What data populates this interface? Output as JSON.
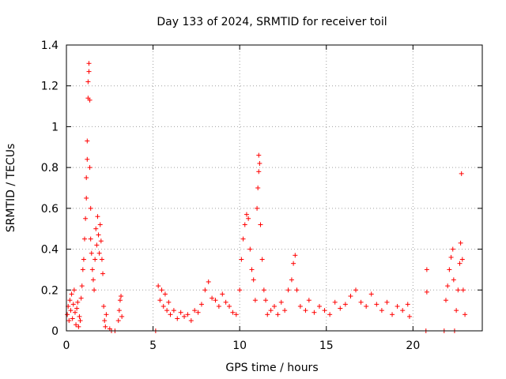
{
  "chart_data": {
    "type": "scatter",
    "title": "Day 133 of 2024, SRMTID for receiver toil",
    "xlabel": "GPS time / hours",
    "ylabel": "SRMTID / TECUs",
    "xlim": [
      0,
      24
    ],
    "ylim": [
      0,
      1.4
    ],
    "xticks": [
      0,
      5,
      10,
      15,
      20
    ],
    "xtick_labels": [
      "0",
      "5",
      "10",
      "15",
      "20"
    ],
    "yticks": [
      0,
      0.2,
      0.4,
      0.6,
      0.8,
      1.0,
      1.2,
      1.4
    ],
    "ytick_labels": [
      "0",
      "0.2",
      "0.4",
      "0.6",
      "0.8",
      "1",
      "1.2",
      "1.4"
    ],
    "grid": true,
    "marker": "plus",
    "color": "#ff0000",
    "series": [
      {
        "name": "SRMTID",
        "points": [
          [
            0.05,
            0.08
          ],
          [
            0.1,
            0.12
          ],
          [
            0.15,
            0.05
          ],
          [
            0.2,
            0.15
          ],
          [
            0.25,
            0.1
          ],
          [
            0.3,
            0.18
          ],
          [
            0.35,
            0.06
          ],
          [
            0.4,
            0.13
          ],
          [
            0.45,
            0.2
          ],
          [
            0.5,
            0.09
          ],
          [
            0.55,
            0.03
          ],
          [
            0.6,
            0.11
          ],
          [
            0.65,
            0.14
          ],
          [
            0.7,
            0.02
          ],
          [
            0.75,
            0.07
          ],
          [
            0.8,
            0.05
          ],
          [
            0.85,
            0.16
          ],
          [
            0.9,
            0.22
          ],
          [
            0.95,
            0.3
          ],
          [
            1.0,
            0.35
          ],
          [
            1.05,
            0.45
          ],
          [
            1.1,
            0.55
          ],
          [
            1.15,
            0.65
          ],
          [
            1.15,
            0.75
          ],
          [
            1.2,
            0.84
          ],
          [
            1.2,
            0.93
          ],
          [
            1.25,
            1.14
          ],
          [
            1.25,
            1.22
          ],
          [
            1.3,
            1.27
          ],
          [
            1.3,
            1.31
          ],
          [
            1.35,
            1.13
          ],
          [
            1.35,
            0.8
          ],
          [
            1.4,
            0.6
          ],
          [
            1.4,
            0.45
          ],
          [
            1.45,
            0.38
          ],
          [
            1.5,
            0.3
          ],
          [
            1.55,
            0.25
          ],
          [
            1.6,
            0.2
          ],
          [
            1.65,
            0.35
          ],
          [
            1.7,
            0.5
          ],
          [
            1.75,
            0.42
          ],
          [
            1.8,
            0.56
          ],
          [
            1.85,
            0.47
          ],
          [
            1.9,
            0.38
          ],
          [
            1.95,
            0.52
          ],
          [
            2.0,
            0.44
          ],
          [
            2.05,
            0.35
          ],
          [
            2.1,
            0.28
          ],
          [
            2.15,
            0.12
          ],
          [
            2.2,
            0.05
          ],
          [
            2.25,
            0.02
          ],
          [
            2.3,
            0.08
          ],
          [
            2.5,
            0.01
          ],
          [
            2.6,
            0.0
          ],
          [
            2.8,
            0.0
          ],
          [
            3.0,
            0.05
          ],
          [
            3.05,
            0.1
          ],
          [
            3.1,
            0.15
          ],
          [
            3.15,
            0.17
          ],
          [
            3.2,
            0.07
          ],
          [
            5.15,
            0.0
          ],
          [
            5.3,
            0.22
          ],
          [
            5.4,
            0.15
          ],
          [
            5.5,
            0.2
          ],
          [
            5.6,
            0.12
          ],
          [
            5.7,
            0.18
          ],
          [
            5.8,
            0.1
          ],
          [
            5.9,
            0.14
          ],
          [
            6.0,
            0.08
          ],
          [
            6.2,
            0.1
          ],
          [
            6.4,
            0.06
          ],
          [
            6.6,
            0.09
          ],
          [
            6.8,
            0.07
          ],
          [
            7.0,
            0.08
          ],
          [
            7.2,
            0.05
          ],
          [
            7.4,
            0.1
          ],
          [
            7.6,
            0.09
          ],
          [
            7.8,
            0.13
          ],
          [
            8.0,
            0.2
          ],
          [
            8.2,
            0.24
          ],
          [
            8.4,
            0.16
          ],
          [
            8.6,
            0.15
          ],
          [
            8.8,
            0.12
          ],
          [
            9.0,
            0.18
          ],
          [
            9.2,
            0.14
          ],
          [
            9.4,
            0.12
          ],
          [
            9.6,
            0.09
          ],
          [
            9.8,
            0.08
          ],
          [
            10.0,
            0.2
          ],
          [
            10.1,
            0.35
          ],
          [
            10.2,
            0.45
          ],
          [
            10.3,
            0.52
          ],
          [
            10.4,
            0.57
          ],
          [
            10.5,
            0.55
          ],
          [
            10.6,
            0.4
          ],
          [
            10.7,
            0.3
          ],
          [
            10.8,
            0.25
          ],
          [
            10.9,
            0.15
          ],
          [
            11.0,
            0.6
          ],
          [
            11.05,
            0.7
          ],
          [
            11.1,
            0.78
          ],
          [
            11.1,
            0.86
          ],
          [
            11.15,
            0.82
          ],
          [
            11.2,
            0.52
          ],
          [
            11.3,
            0.35
          ],
          [
            11.4,
            0.2
          ],
          [
            11.5,
            0.15
          ],
          [
            11.6,
            0.08
          ],
          [
            11.8,
            0.1
          ],
          [
            12.0,
            0.12
          ],
          [
            12.2,
            0.08
          ],
          [
            12.4,
            0.14
          ],
          [
            12.6,
            0.1
          ],
          [
            12.8,
            0.2
          ],
          [
            13.0,
            0.25
          ],
          [
            13.1,
            0.33
          ],
          [
            13.2,
            0.37
          ],
          [
            13.3,
            0.2
          ],
          [
            13.5,
            0.12
          ],
          [
            13.8,
            0.1
          ],
          [
            14.0,
            0.15
          ],
          [
            14.3,
            0.09
          ],
          [
            14.6,
            0.12
          ],
          [
            14.9,
            0.1
          ],
          [
            15.2,
            0.08
          ],
          [
            15.5,
            0.14
          ],
          [
            15.8,
            0.11
          ],
          [
            16.1,
            0.13
          ],
          [
            16.4,
            0.17
          ],
          [
            16.7,
            0.2
          ],
          [
            17.0,
            0.14
          ],
          [
            17.3,
            0.12
          ],
          [
            17.6,
            0.18
          ],
          [
            17.9,
            0.13
          ],
          [
            18.2,
            0.1
          ],
          [
            18.5,
            0.14
          ],
          [
            18.8,
            0.08
          ],
          [
            19.1,
            0.12
          ],
          [
            19.4,
            0.1
          ],
          [
            19.7,
            0.13
          ],
          [
            19.8,
            0.07
          ],
          [
            20.8,
            0.3
          ],
          [
            20.8,
            0.19
          ],
          [
            20.75,
            0.0
          ],
          [
            21.8,
            0.0
          ],
          [
            21.9,
            0.15
          ],
          [
            22.0,
            0.22
          ],
          [
            22.1,
            0.3
          ],
          [
            22.2,
            0.36
          ],
          [
            22.3,
            0.4
          ],
          [
            22.35,
            0.25
          ],
          [
            22.4,
            0.0
          ],
          [
            22.5,
            0.1
          ],
          [
            22.6,
            0.2
          ],
          [
            22.7,
            0.33
          ],
          [
            22.75,
            0.43
          ],
          [
            22.8,
            0.77
          ],
          [
            22.85,
            0.35
          ],
          [
            22.9,
            0.2
          ],
          [
            23.0,
            0.08
          ]
        ]
      }
    ]
  }
}
